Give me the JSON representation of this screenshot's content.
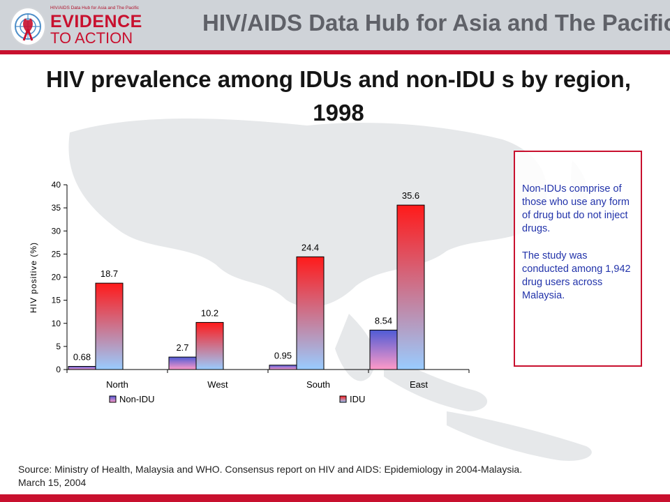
{
  "logo": {
    "small_text": "HIV/AIDS Data Hub for Asia and The Pacific",
    "line1": "EVIDENCE",
    "line2": "TO ACTION"
  },
  "header": {
    "title": "HIV/AIDS Data Hub for Asia and The Pacific"
  },
  "slide": {
    "title": "HIV prevalence among IDUs and non-IDU s by region, 1998"
  },
  "note": {
    "para1": "Non-IDUs comprise of those who use any form of drug but do not inject drugs.",
    "para2": "The study was conducted among 1,942 drug users across Malaysia."
  },
  "source": {
    "line1": "Source: Ministry of Health, Malaysia and WHO. Consensus report on HIV and AIDS: Epidemiology in 2004-Malaysia.",
    "line2": "March 15, 2004"
  },
  "colors": {
    "accent": "#c8102e",
    "header_bg": "#cfd3d8",
    "note_text": "#2233aa"
  },
  "chart_data": {
    "type": "bar",
    "categories": [
      "North",
      "West",
      "South",
      "East"
    ],
    "series": [
      {
        "name": "Non-IDU",
        "values": [
          0.68,
          2.7,
          0.95,
          8.54
        ],
        "labels": [
          "0.68",
          "2.7",
          "0.95",
          "8.54"
        ],
        "gradient": [
          "#4f5bd5",
          "#ff9ac8"
        ]
      },
      {
        "name": "IDU",
        "values": [
          18.7,
          10.2,
          24.4,
          35.6
        ],
        "labels": [
          "18.7",
          "10.2",
          "24.4",
          "35.6"
        ],
        "gradient": [
          "#ff1a1a",
          "#99ccff"
        ]
      }
    ],
    "ylabel": "HIV positive (%)",
    "xlabel": "",
    "ylim": [
      0,
      40
    ],
    "yticks": [
      0,
      5,
      10,
      15,
      20,
      25,
      30,
      35,
      40
    ],
    "grid": false,
    "legend_position": "bottom"
  }
}
